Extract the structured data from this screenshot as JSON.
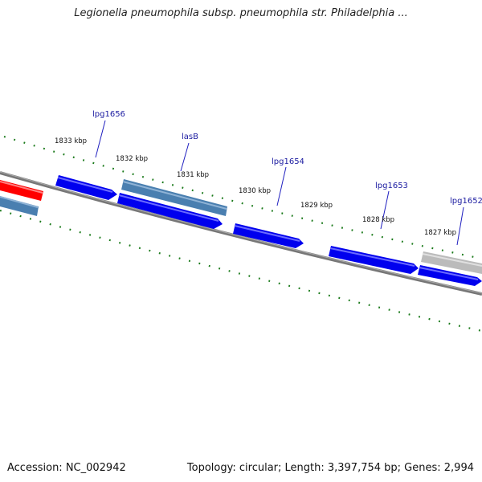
{
  "title": "Legionella pneumophila subsp. pneumophila str. Philadelphia ...",
  "footer": {
    "accession": "Accession: NC_002942",
    "summary": "Topology: circular; Length: 3,397,754 bp; Genes: 2,994"
  },
  "kbp_labels": [
    "1833 kbp",
    "1832 kbp",
    "1831 kbp",
    "1830 kbp",
    "1829 kbp",
    "1828 kbp",
    "1827 kbp"
  ],
  "gene_labels": [
    "lpg1656",
    "lasB",
    "lpg1654",
    "lpg1653",
    "lpg1652"
  ],
  "colors": {
    "forward_gene": "#0000ee",
    "steelblue_gene": "#4a7fb0",
    "red_gene": "#ff0000",
    "gray_gene": "#bbbbbb",
    "backbone": "#777777",
    "tick_marks": "#1a7a1a",
    "gene_label_text": "#1a1aa0"
  }
}
